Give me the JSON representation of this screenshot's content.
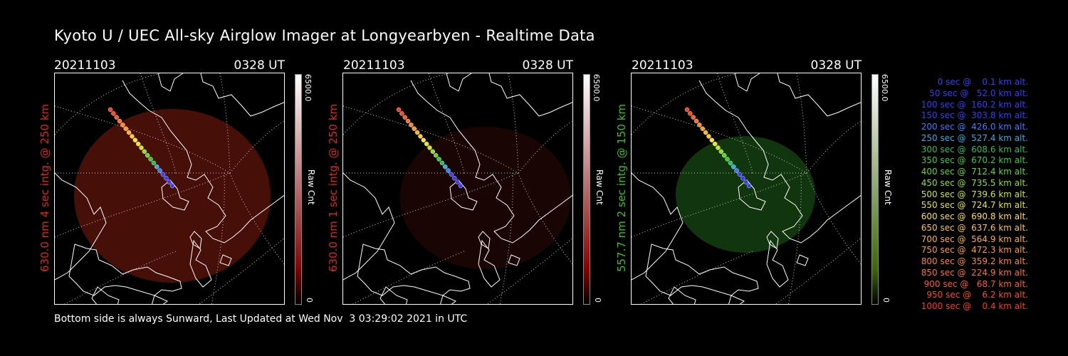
{
  "title": "Kyoto U / UEC All-sky Airglow Imager at Longyearbyen - Realtime Data",
  "footer": "Bottom side is always Sunward, Last Updated at Wed Nov  3 03:29:02 2021 in UTC",
  "panels": [
    {
      "date": "20211103",
      "time": "0328 UT",
      "label": "630.0 nm 4 sec intg. @ 250 km",
      "label_color": "#dd2a10",
      "cbar_max": "6500.0",
      "cbar_min": "0",
      "cbar_label": "Raw Cnt",
      "cbar_top": "#ffffff",
      "cbar_bottom": "#880000",
      "glow_color": "#4a1008"
    },
    {
      "date": "20211103",
      "time": "0328 UT",
      "label": "630.0 nm 1 sec intg. @ 250 km",
      "label_color": "#dd2a10",
      "cbar_max": "6500.0",
      "cbar_min": "0",
      "cbar_label": "Raw Cnt",
      "cbar_top": "#ffffff",
      "cbar_bottom": "#880000",
      "glow_color": "#1a0503"
    },
    {
      "date": "20211103",
      "time": "0328 UT",
      "label": "557.7 nm 2 sec intg. @ 150 km",
      "label_color": "#37c21a",
      "cbar_max": "6500.0",
      "cbar_min": "0",
      "cbar_label": "Raw Cnt",
      "cbar_top": "#ffffff",
      "cbar_bottom": "#3a6a00",
      "glow_color": "#12380e"
    }
  ],
  "legend": [
    {
      "text": "   0 sec @    0.1 km alt.",
      "color": "#3a3aff"
    },
    {
      "text": "  50 sec @   52.0 km alt.",
      "color": "#3a3aff"
    },
    {
      "text": " 100 sec @  160.2 km alt.",
      "color": "#3a3aff"
    },
    {
      "text": " 150 sec @  303.8 km alt.",
      "color": "#3a3aff"
    },
    {
      "text": " 200 sec @  426.0 km alt.",
      "color": "#3c7cff"
    },
    {
      "text": " 250 sec @  527.4 km alt.",
      "color": "#2ab0e8"
    },
    {
      "text": " 300 sec @  608.6 km alt.",
      "color": "#22c05a"
    },
    {
      "text": " 350 sec @  670.2 km alt.",
      "color": "#34d034"
    },
    {
      "text": " 400 sec @  712.4 km alt.",
      "color": "#60d828"
    },
    {
      "text": " 450 sec @  735.5 km alt.",
      "color": "#8ee020"
    },
    {
      "text": " 500 sec @  739.6 km alt.",
      "color": "#c8e820"
    },
    {
      "text": " 550 sec @  724.7 km alt.",
      "color": "#e8e81a"
    },
    {
      "text": " 600 sec @  690.8 km alt.",
      "color": "#ffe030"
    },
    {
      "text": " 650 sec @  637.6 km alt.",
      "color": "#ffc830"
    },
    {
      "text": " 700 sec @  564.9 km alt.",
      "color": "#ffb030"
    },
    {
      "text": " 750 sec @  472.3 km alt.",
      "color": "#ff9a30"
    },
    {
      "text": " 800 sec @  359.2 km alt.",
      "color": "#ff8530"
    },
    {
      "text": " 850 sec @  224.9 km alt.",
      "color": "#ff7030"
    },
    {
      "text": " 900 sec @   68.7 km alt.",
      "color": "#ff5a2a"
    },
    {
      "text": " 950 sec @    6.2 km alt.",
      "color": "#ff4a24"
    },
    {
      "text": "1000 sec @    0.4 km alt.",
      "color": "#ff3a1e"
    }
  ]
}
